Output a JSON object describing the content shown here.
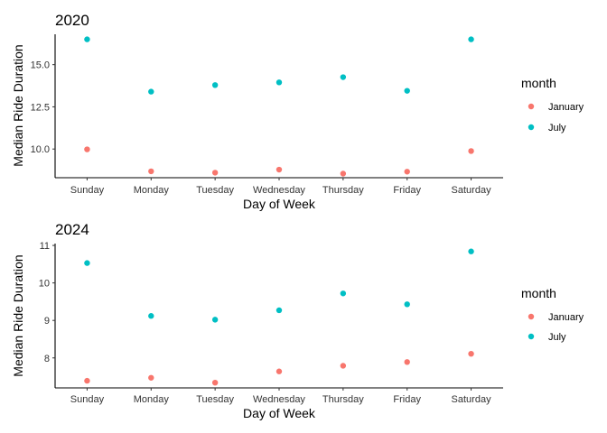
{
  "chart_data": [
    {
      "type": "scatter",
      "title": "2020",
      "xlabel": "Day of Week",
      "ylabel": "Median Ride Duration",
      "categories": [
        "Sunday",
        "Monday",
        "Tuesday",
        "Wednesday",
        "Thursday",
        "Friday",
        "Saturday"
      ],
      "y_ticks": [
        "10.0",
        "12.5",
        "15.0"
      ],
      "ylim": [
        8.3,
        16.8
      ],
      "legend_title": "month",
      "legend_position": "right",
      "grid": false,
      "series": [
        {
          "name": "January",
          "color": "#F8766D",
          "values": [
            9.98,
            8.68,
            8.6,
            8.78,
            8.54,
            8.66,
            9.88
          ]
        },
        {
          "name": "July",
          "color": "#00BFC4",
          "values": [
            16.5,
            13.4,
            13.79,
            13.95,
            14.26,
            13.45,
            16.5
          ]
        }
      ]
    },
    {
      "type": "scatter",
      "title": "2024",
      "xlabel": "Day of Week",
      "ylabel": "Median Ride Duration",
      "categories": [
        "Sunday",
        "Monday",
        "Tuesday",
        "Wednesday",
        "Thursday",
        "Friday",
        "Saturday"
      ],
      "y_ticks": [
        "8",
        "9",
        "10",
        "11"
      ],
      "ylim": [
        7.2,
        11.05
      ],
      "legend_title": "month",
      "legend_position": "right",
      "grid": false,
      "series": [
        {
          "name": "January",
          "color": "#F8766D",
          "values": [
            7.39,
            7.47,
            7.34,
            7.64,
            7.79,
            7.89,
            8.11
          ]
        },
        {
          "name": "July",
          "color": "#00BFC4",
          "values": [
            10.53,
            9.12,
            9.02,
            9.27,
            9.72,
            9.43,
            10.84
          ]
        }
      ]
    }
  ]
}
